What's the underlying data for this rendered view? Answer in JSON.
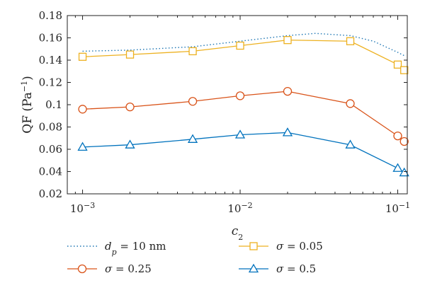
{
  "chart_data": {
    "type": "line",
    "xscale": "log",
    "xlim": [
      0.0008,
      0.115
    ],
    "ylim": [
      0.02,
      0.18
    ],
    "grid": false,
    "xlabel": "c",
    "xlabel_sub": "2",
    "ylabel": "QF (Pa",
    "ylabel_sup": "−1",
    "ylabel_close": ")",
    "x_ticks": [
      {
        "value": 0.001,
        "base": "10",
        "exp": "−3"
      },
      {
        "value": 0.01,
        "base": "10",
        "exp": "−2"
      },
      {
        "value": 0.1,
        "base": "10",
        "exp": "−1"
      }
    ],
    "y_ticks": [
      {
        "value": 0.02,
        "label": "0.02"
      },
      {
        "value": 0.04,
        "label": "0.04"
      },
      {
        "value": 0.06,
        "label": "0.06"
      },
      {
        "value": 0.08,
        "label": "0.08"
      },
      {
        "value": 0.1,
        "label": "0.1"
      },
      {
        "value": 0.12,
        "label": "0.12"
      },
      {
        "value": 0.14,
        "label": "0.14"
      },
      {
        "value": 0.16,
        "label": "0.16"
      },
      {
        "value": 0.18,
        "label": "0.18"
      }
    ],
    "legend_position": "bottom",
    "series": [
      {
        "id": "dp",
        "legend_math": "d",
        "legend_sub": "p",
        "legend_rest": " = 10 nm",
        "color": "#1f77b4",
        "style": "dotted",
        "marker": "none",
        "x": [
          0.001,
          0.002,
          0.005,
          0.01,
          0.02,
          0.03,
          0.05,
          0.07,
          0.1,
          0.11
        ],
        "y": [
          0.148,
          0.149,
          0.152,
          0.157,
          0.162,
          0.164,
          0.162,
          0.157,
          0.147,
          0.144
        ]
      },
      {
        "id": "s005",
        "legend_math": "σ",
        "legend_sub": "",
        "legend_rest": " = 0.05",
        "color": "#edb120",
        "style": "solid",
        "marker": "square",
        "x": [
          0.001,
          0.002,
          0.005,
          0.01,
          0.02,
          0.05,
          0.1,
          0.11
        ],
        "y": [
          0.143,
          0.145,
          0.148,
          0.153,
          0.158,
          0.157,
          0.136,
          0.131
        ]
      },
      {
        "id": "s025",
        "legend_math": "σ",
        "legend_sub": "",
        "legend_rest": " = 0.25",
        "color": "#d95319",
        "style": "solid",
        "marker": "circle",
        "x": [
          0.001,
          0.002,
          0.005,
          0.01,
          0.02,
          0.05,
          0.1,
          0.11
        ],
        "y": [
          0.096,
          0.098,
          0.103,
          0.108,
          0.112,
          0.101,
          0.072,
          0.067
        ]
      },
      {
        "id": "s05",
        "legend_math": "σ",
        "legend_sub": "",
        "legend_rest": " = 0.5",
        "color": "#0072bd",
        "style": "solid",
        "marker": "triangle",
        "x": [
          0.001,
          0.002,
          0.005,
          0.01,
          0.02,
          0.05,
          0.1,
          0.11
        ],
        "y": [
          0.062,
          0.064,
          0.069,
          0.073,
          0.075,
          0.064,
          0.043,
          0.039
        ]
      }
    ],
    "legend_order": [
      "dp",
      "s005",
      "s025",
      "s05"
    ]
  }
}
